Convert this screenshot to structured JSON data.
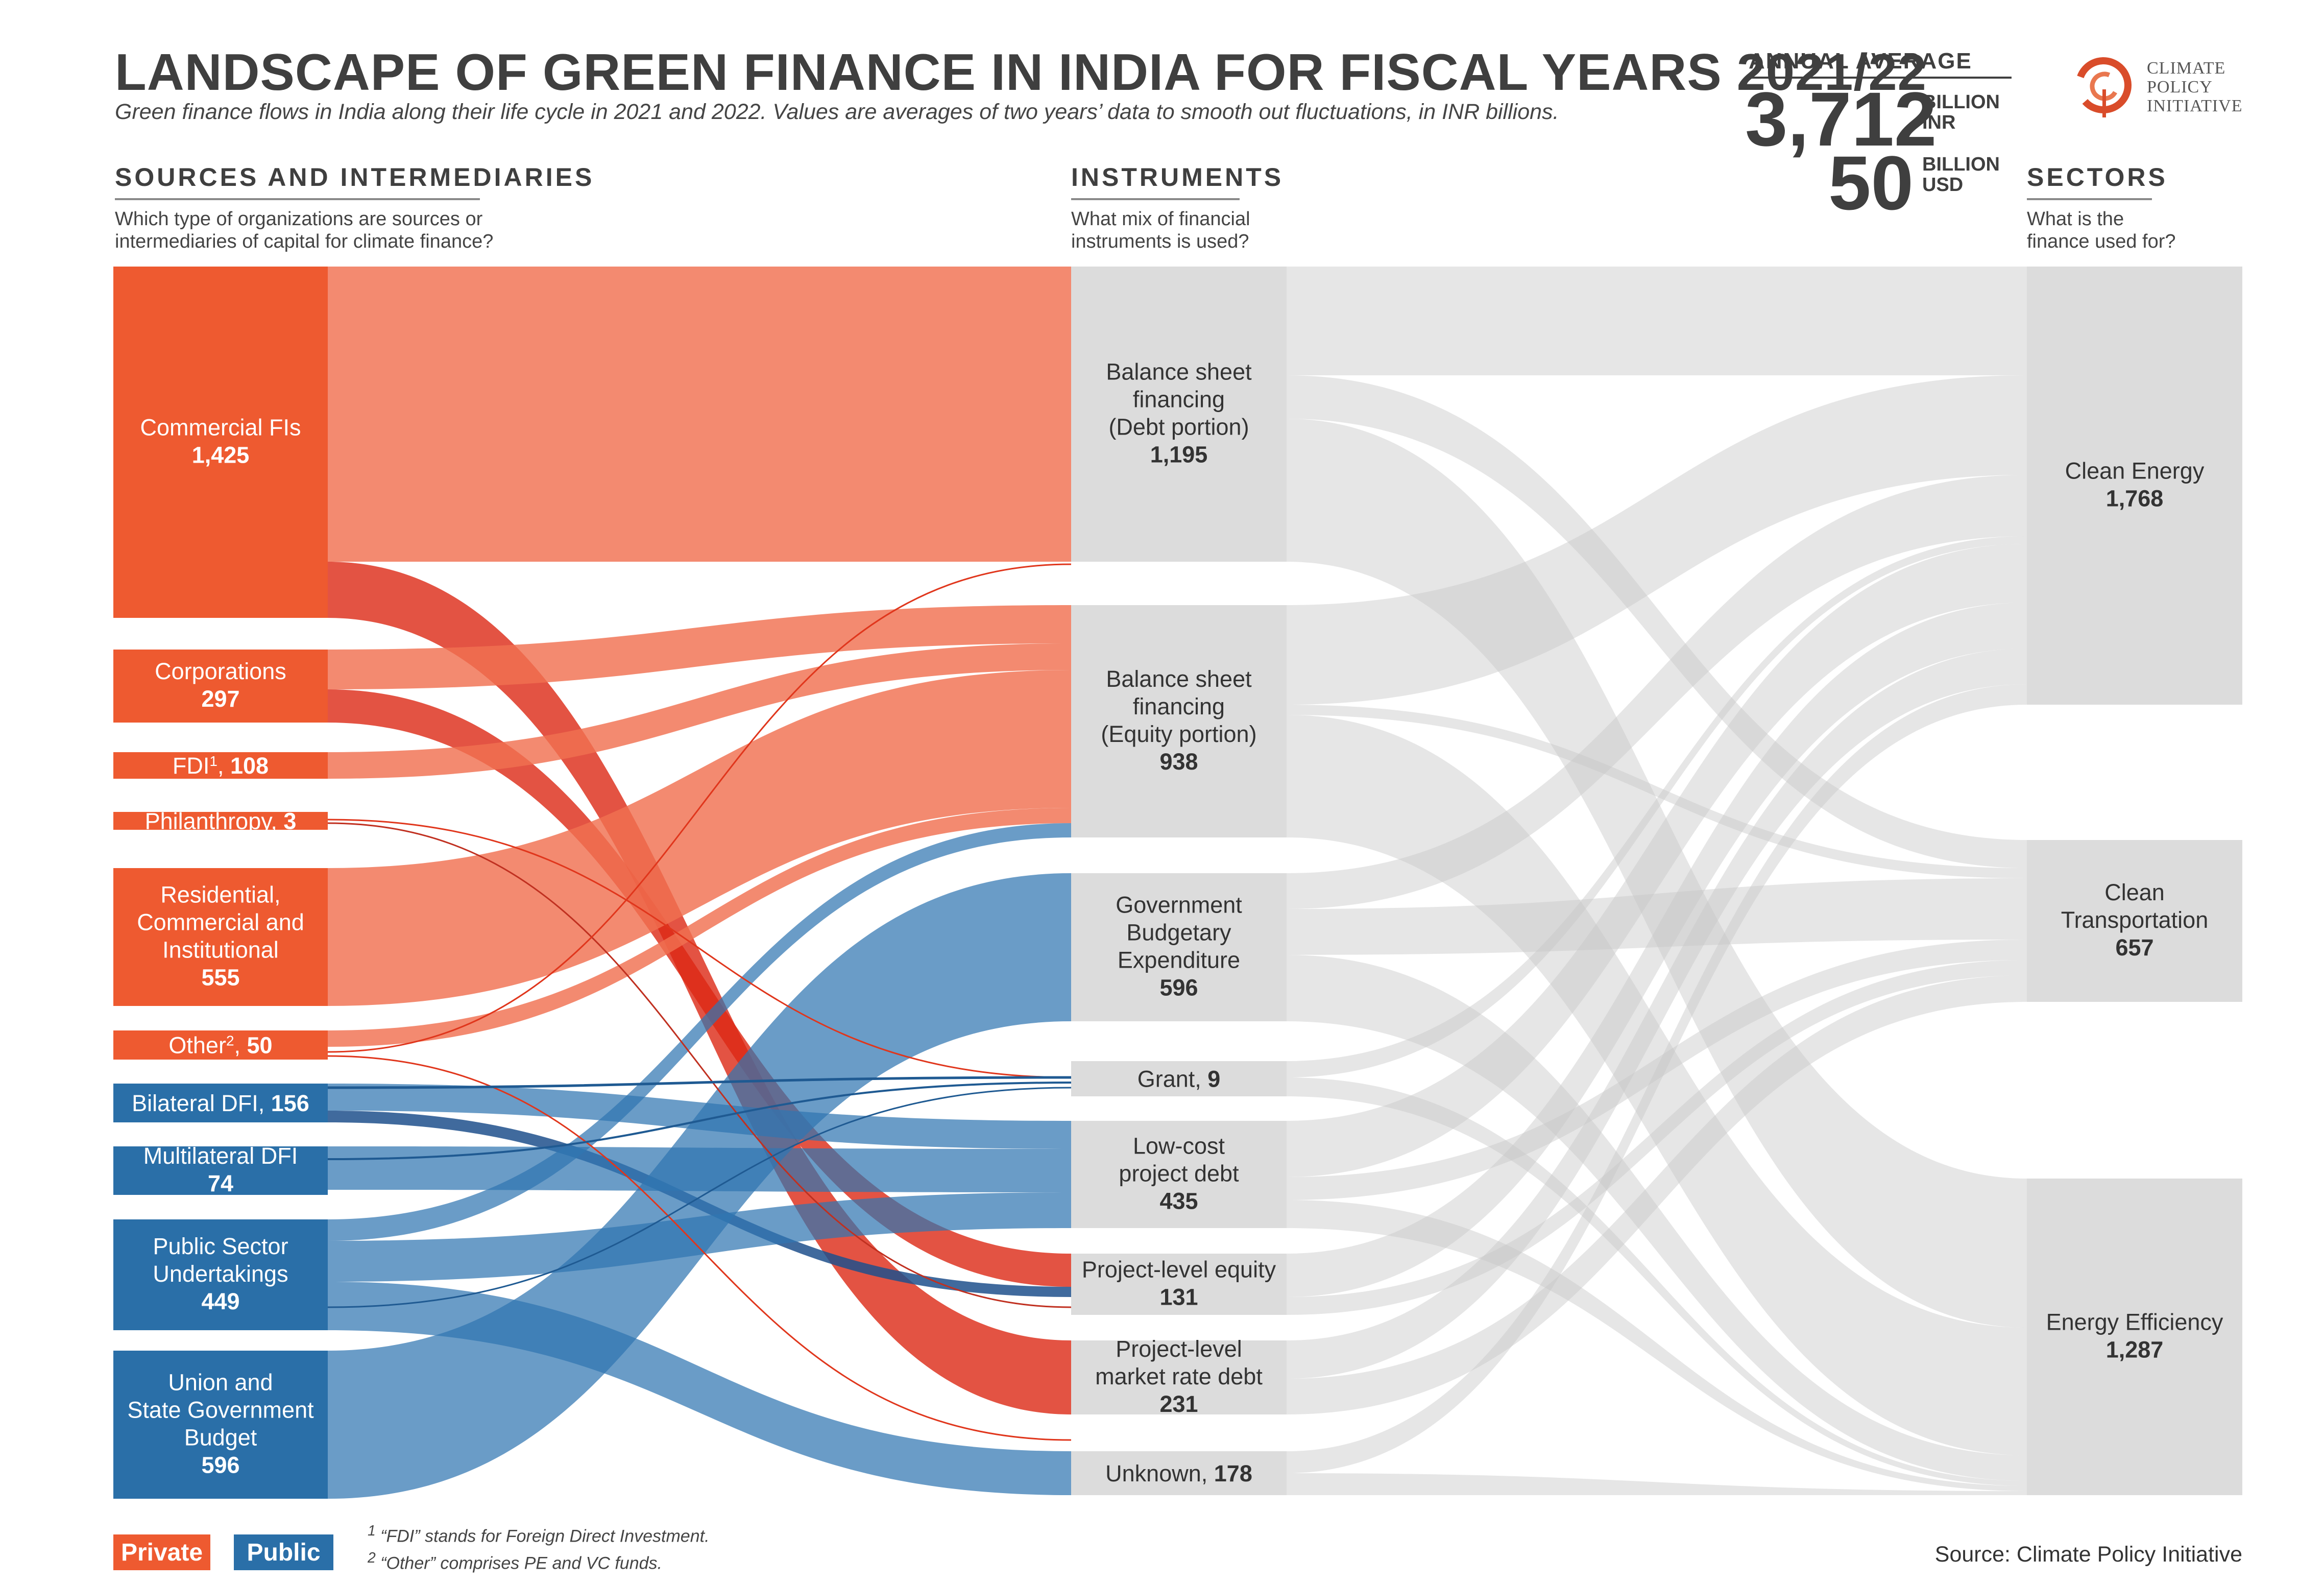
{
  "title": "LANDSCAPE OF GREEN FINANCE IN INDIA FOR FISCAL YEARS 2021/22",
  "subtitle_main": "Green finance flows in India along their life cycle in 2021 and 2022. Values are averages of two years’ data to smooth out fluctuations, in ",
  "subtitle_unit": "INR billions.",
  "annual_average": {
    "label": "ANNUAL AVERAGE",
    "inr_value": "3,712",
    "inr_unit_1": "BILLION",
    "inr_unit_2": "INR",
    "usd_value": "50",
    "usd_unit_1": "BILLION",
    "usd_unit_2": "USD"
  },
  "logo": {
    "line1": "CLIMATE",
    "line2": "POLICY",
    "line3": "INITIATIVE",
    "icon": "cpi-logo-icon"
  },
  "columns": {
    "sources": {
      "heading": "SOURCES AND INTERMEDIARIES",
      "q1": "Which type of organizations are sources or",
      "q2": "intermediaries of capital for climate finance?"
    },
    "instruments": {
      "heading": "INSTRUMENTS",
      "q1": "What mix of financial",
      "q2": "instruments is used?"
    },
    "sectors": {
      "heading": "SECTORS",
      "q1": "What is the",
      "q2": "finance used for?"
    }
  },
  "colors": {
    "private_dark": "#ee5a30",
    "private_flow": "#f28a6d",
    "private_line": "#e0361c",
    "public_dark": "#2a6fa8",
    "public_flow": "#6a9dc7",
    "neutral_node": "#dcdcdc",
    "neutral_flow": "#e6e6e6"
  },
  "chart_data": {
    "type": "sankey",
    "unit": "INR billions",
    "sources": [
      {
        "id": "cfi",
        "lines": [
          "Commercial FIs"
        ],
        "value": 1425,
        "value_label": "1,425",
        "group": "private"
      },
      {
        "id": "corp",
        "lines": [
          "Corporations"
        ],
        "value": 297,
        "value_label": "297",
        "group": "private"
      },
      {
        "id": "fdi",
        "lines": [],
        "inline": "FDI",
        "sup": "1",
        "value": 108,
        "value_label": "108",
        "group": "private"
      },
      {
        "id": "phil",
        "lines": [],
        "inline": "Philanthropy",
        "value": 3,
        "value_label": "3",
        "group": "private"
      },
      {
        "id": "resi",
        "lines": [
          "Residential,",
          "Commercial and",
          "Institutional"
        ],
        "value": 555,
        "value_label": "555",
        "group": "private"
      },
      {
        "id": "other",
        "lines": [],
        "inline": "Other",
        "sup": "2",
        "value": 50,
        "value_label": "50",
        "group": "private"
      },
      {
        "id": "bdfi",
        "lines": [],
        "inline": "Bilateral DFI",
        "value": 156,
        "value_label": "156",
        "group": "public"
      },
      {
        "id": "mdfi",
        "lines": [
          "Multilateral DFI"
        ],
        "value": 74,
        "value_label": "74",
        "group": "public"
      },
      {
        "id": "psu",
        "lines": [
          "Public Sector",
          "Undertakings"
        ],
        "value": 449,
        "value_label": "449",
        "group": "public"
      },
      {
        "id": "gov",
        "lines": [
          "Union and",
          "State Government",
          "Budget"
        ],
        "value": 596,
        "value_label": "596",
        "group": "public"
      }
    ],
    "instruments": [
      {
        "id": "bsd",
        "lines": [
          "Balance sheet",
          "financing",
          "(Debt portion)"
        ],
        "value": 1195,
        "value_label": "1,195"
      },
      {
        "id": "bse",
        "lines": [
          "Balance sheet",
          "financing",
          "(Equity portion)"
        ],
        "value": 938,
        "value_label": "938"
      },
      {
        "id": "gbe",
        "lines": [
          "Government",
          "Budgetary",
          "Expenditure"
        ],
        "value": 596,
        "value_label": "596"
      },
      {
        "id": "grant",
        "lines": [],
        "inline": "Grant",
        "value": 9,
        "value_label": "9"
      },
      {
        "id": "lcd",
        "lines": [
          "Low-cost",
          "project debt"
        ],
        "value": 435,
        "value_label": "435"
      },
      {
        "id": "ple",
        "lines": [
          "Project-level equity"
        ],
        "value": 131,
        "value_label": "131"
      },
      {
        "id": "pmd",
        "lines": [
          "Project-level",
          "market rate debt"
        ],
        "value": 231,
        "value_label": "231"
      },
      {
        "id": "unk",
        "lines": [],
        "inline": "Unknown",
        "value": 178,
        "value_label": "178"
      }
    ],
    "sectors": [
      {
        "id": "ce",
        "lines": [
          "Clean Energy"
        ],
        "value": 1768,
        "value_label": "1,768"
      },
      {
        "id": "ct",
        "lines": [
          "Clean",
          "Transportation"
        ],
        "value": 657,
        "value_label": "657"
      },
      {
        "id": "ee",
        "lines": [
          "Energy Efficiency"
        ],
        "value": 1287,
        "value_label": "1,287"
      }
    ]
  },
  "legend": {
    "private": "Private",
    "public": "Public"
  },
  "footnotes": {
    "n1_mark": "1",
    "n1_text": " “FDI” stands for Foreign Direct Investment.",
    "n2_mark": "2",
    "n2_text": " “Other” comprises PE and VC funds."
  },
  "source": "Source: Climate Policy Initiative"
}
